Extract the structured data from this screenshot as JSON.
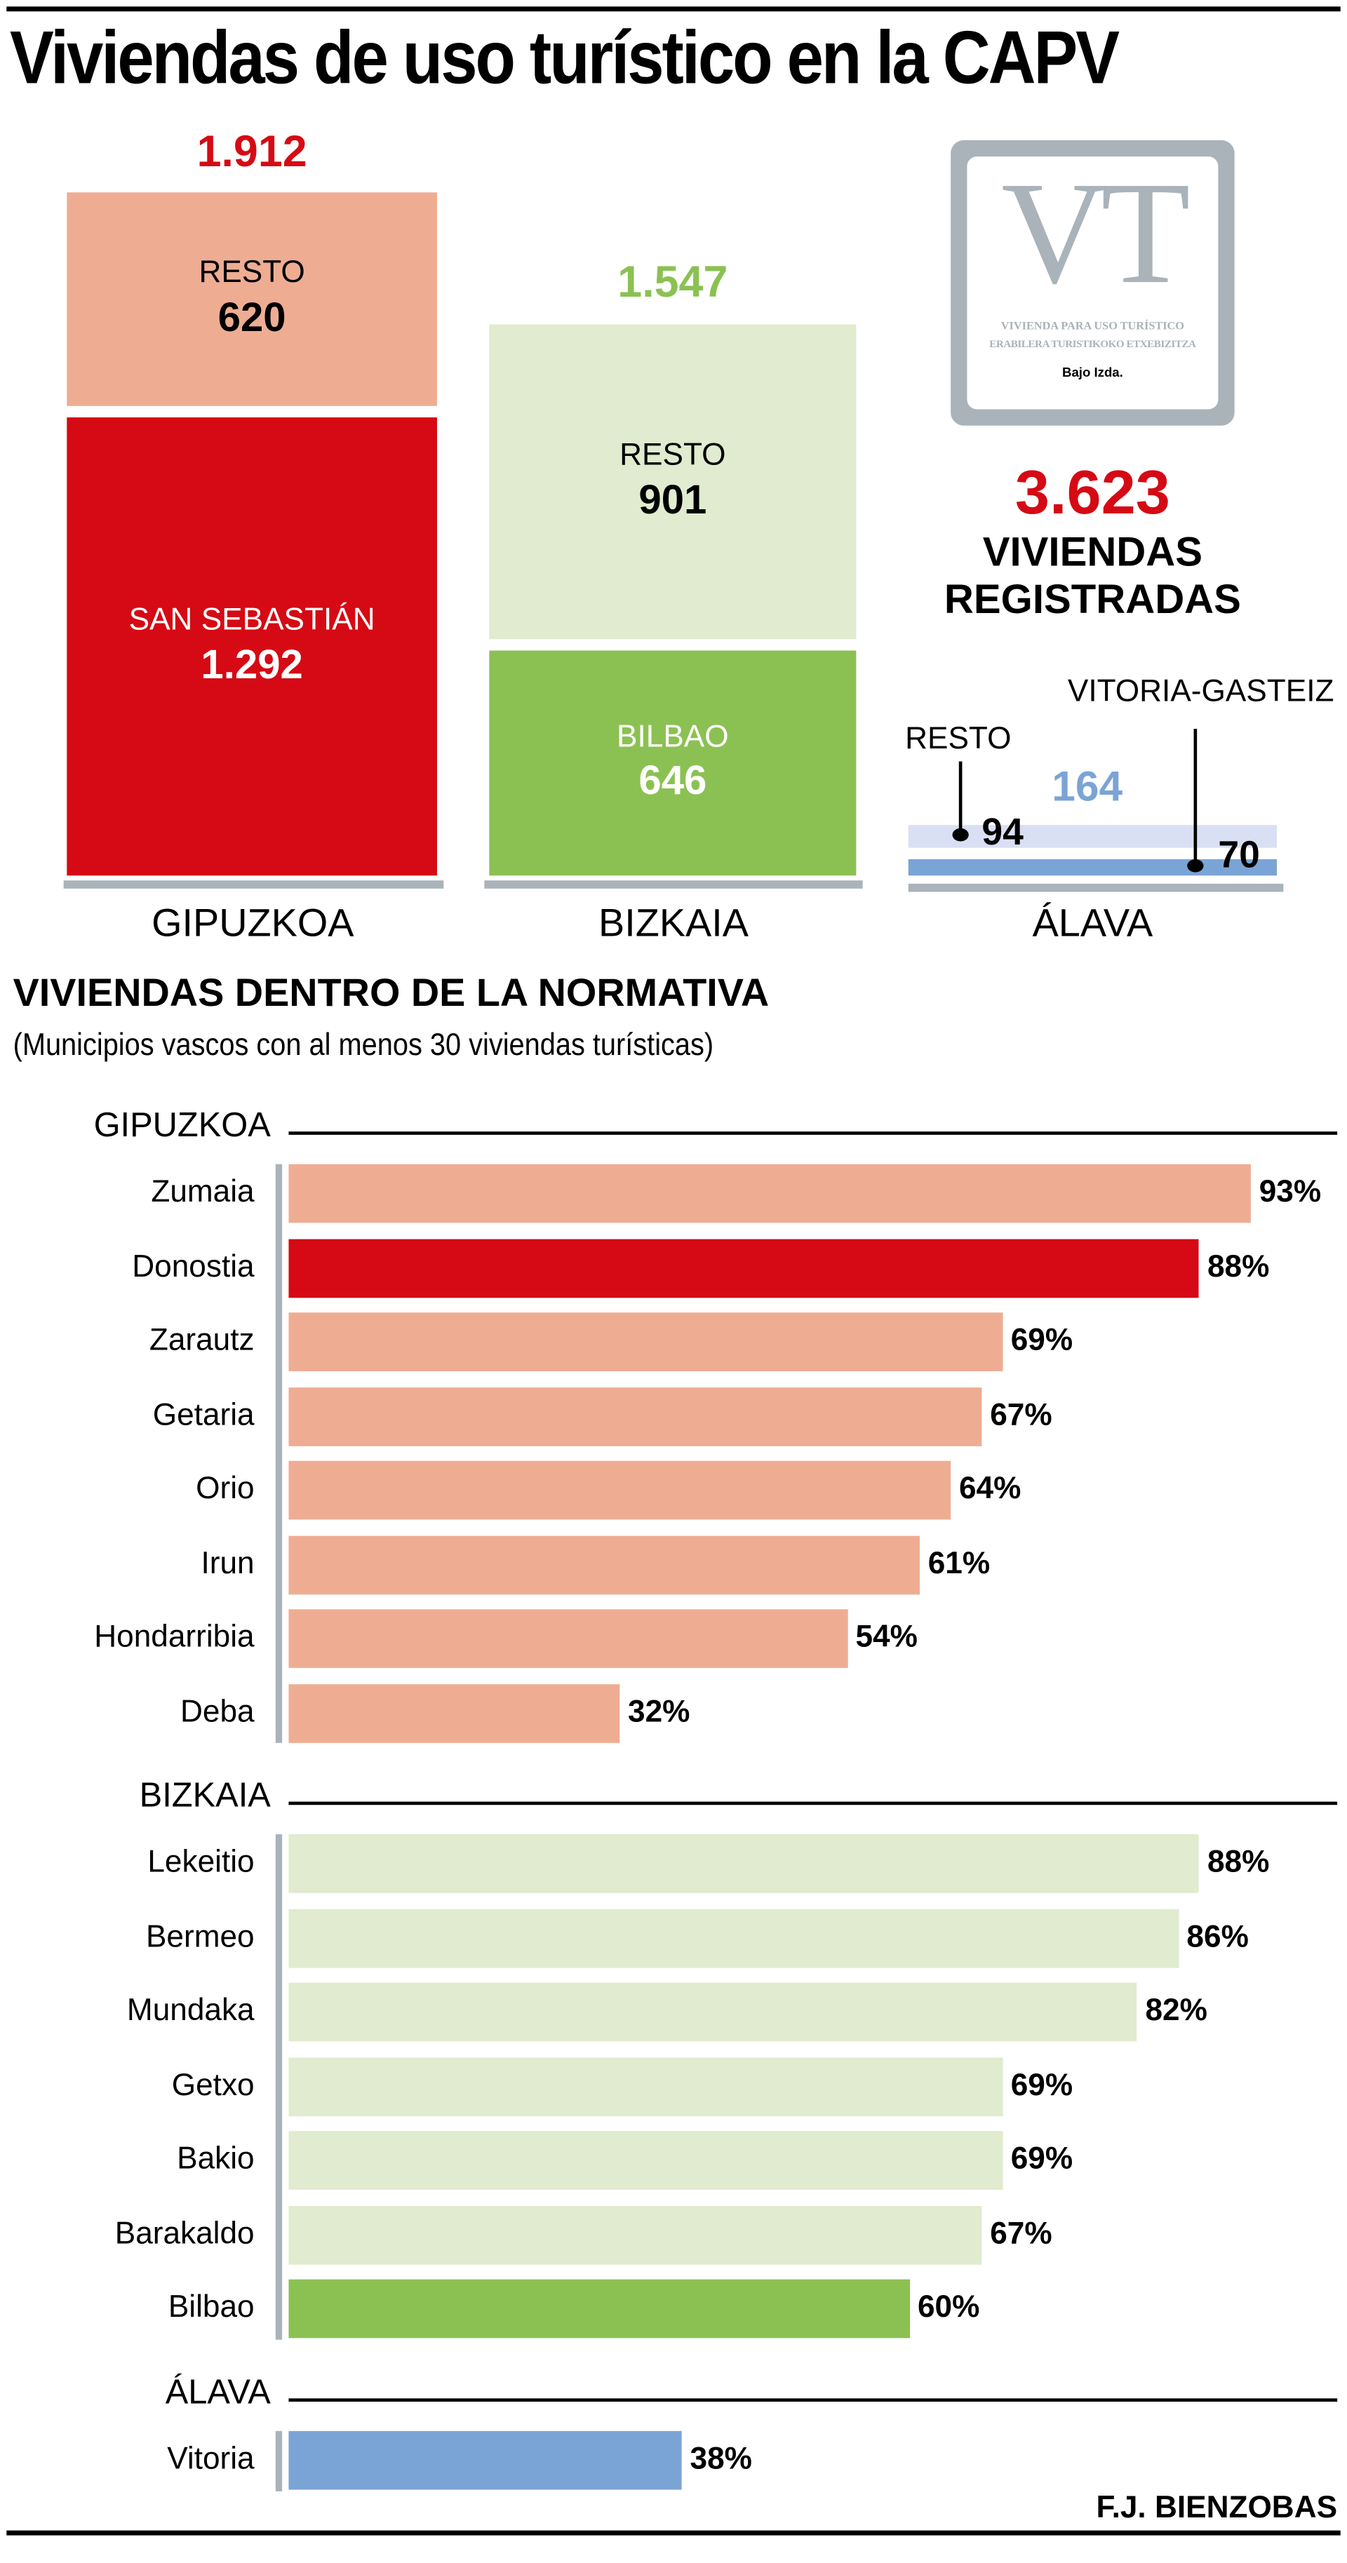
{
  "title": "Viviendas de uso turístico en la CAPV",
  "colors": {
    "red": "#D50A14",
    "salmon": "#EEAD93",
    "green": "#8BC152",
    "light_green": "#E0EBCF",
    "blue": "#7BA4D6",
    "light_blue": "#DAE0F3",
    "gray": "#A9B3B9"
  },
  "provinces": {
    "gipuzkoa": {
      "name": "GIPUZKOA",
      "total": "1.912",
      "resto_label": "RESTO",
      "resto": "620",
      "capital_label": "SAN SEBASTIÁN",
      "capital": "1.292"
    },
    "bizkaia": {
      "name": "BIZKAIA",
      "total": "1.547",
      "resto_label": "RESTO",
      "resto": "901",
      "capital_label": "BILBAO",
      "capital": "646"
    },
    "alava": {
      "name": "ÁLAVA",
      "total": "164",
      "resto_label": "RESTO",
      "resto": "94",
      "capital_label": "VITORIA-GASTEIZ",
      "capital": "70"
    }
  },
  "logo": {
    "letters": "VT",
    "line1": "VIVIENDA PARA USO TURÍSTICO",
    "line2": "ERABILERA TURISTIKOKO ETXEBIZITZA",
    "floor": "Bajo Izda."
  },
  "summary": {
    "total": "3.623",
    "line1": "VIVIENDAS",
    "line2": "REGISTRADAS"
  },
  "section": {
    "title": "VIVIENDAS DENTRO DE LA NORMATIVA",
    "subtitle": "(Municipios vascos con al menos 30 viviendas turísticas)"
  },
  "credit": "F.J. BIENZOBAS",
  "chart_data": {
    "type": "bar",
    "title": "VIVIENDAS DENTRO DE LA NORMATIVA",
    "unit": "%",
    "groups": [
      {
        "name": "GIPUZKOA",
        "rows": [
          {
            "label": "Zumaia",
            "value": 93,
            "text": "93%",
            "highlight": false
          },
          {
            "label": "Donostia",
            "value": 88,
            "text": "88%",
            "highlight": true
          },
          {
            "label": "Zarautz",
            "value": 69,
            "text": "69%",
            "highlight": false
          },
          {
            "label": "Getaria",
            "value": 67,
            "text": "67%",
            "highlight": false
          },
          {
            "label": "Orio",
            "value": 64,
            "text": "64%",
            "highlight": false
          },
          {
            "label": "Irun",
            "value": 61,
            "text": "61%",
            "highlight": false
          },
          {
            "label": "Hondarribia",
            "value": 54,
            "text": "54%",
            "highlight": false
          },
          {
            "label": "Deba",
            "value": 32,
            "text": "32%",
            "highlight": false
          }
        ]
      },
      {
        "name": "BIZKAIA",
        "rows": [
          {
            "label": "Lekeitio",
            "value": 88,
            "text": "88%",
            "highlight": false
          },
          {
            "label": "Bermeo",
            "value": 86,
            "text": "86%",
            "highlight": false
          },
          {
            "label": "Mundaka",
            "value": 82,
            "text": "82%",
            "highlight": false
          },
          {
            "label": "Getxo",
            "value": 69,
            "text": "69%",
            "highlight": false
          },
          {
            "label": "Bakio",
            "value": 69,
            "text": "69%",
            "highlight": false
          },
          {
            "label": "Barakaldo",
            "value": 67,
            "text": "67%",
            "highlight": false
          },
          {
            "label": "Bilbao",
            "value": 60,
            "text": "60%",
            "highlight": true
          }
        ]
      },
      {
        "name": "ÁLAVA",
        "rows": [
          {
            "label": "Vitoria",
            "value": 38,
            "text": "38%",
            "highlight": true
          }
        ]
      }
    ]
  }
}
